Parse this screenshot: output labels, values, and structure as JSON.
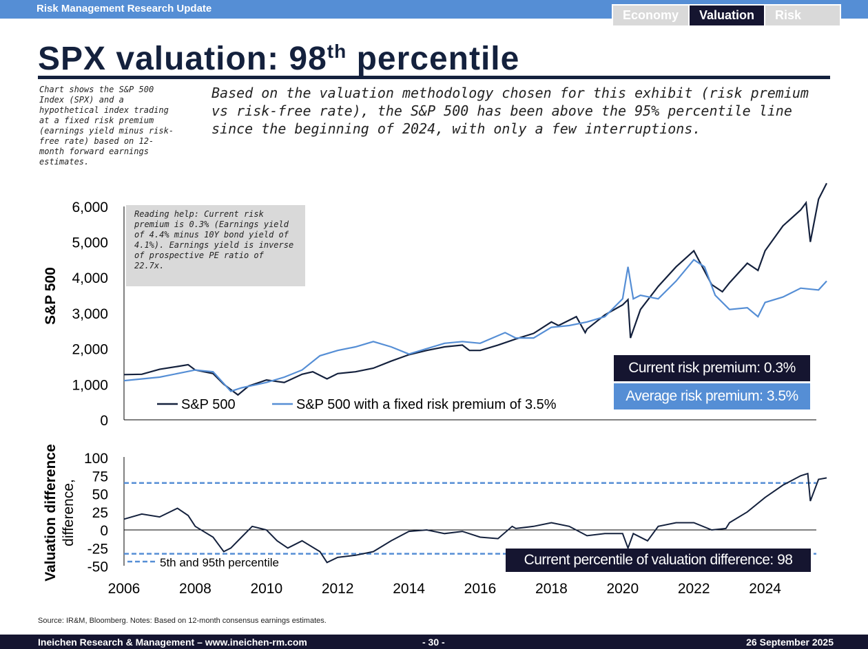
{
  "header": {
    "title": "Risk Management Research Update",
    "tabs": [
      {
        "label": "Economy"
      },
      {
        "label": "Valuation"
      },
      {
        "label": "Risk"
      }
    ]
  },
  "page_title": {
    "main": "SPX valuation: 98",
    "sup": "th",
    "tail": " percentile"
  },
  "side_note": "Chart shows the S&P 500 Index (SPX) and a hypothetical index trading at a fixed risk premium (earnings yield minus risk-free rate) based on 12-month forward earnings estimates.",
  "lead": "Based on the valuation methodology chosen for this exhibit (risk premium vs risk-free rate), the S&P 500 has been above the 95% percentile line since the beginning of 2024, with only a few interruptions.",
  "source": "Source: IR&M, Bloomberg. Notes: Based on 12-month consensus earnings estimates.",
  "footer": {
    "left": "Ineichen Research & Management – www.ineichen-rm.com",
    "page": "- 30 -",
    "date": "26 September 2025"
  },
  "colors": {
    "dark": "#151530",
    "blue": "#558ed5",
    "spx": "#14213d"
  },
  "chart_data": [
    {
      "type": "line",
      "ylabel": "S&P 500",
      "ylim": [
        0,
        6500
      ],
      "yticks": [
        "0",
        "1,000",
        "2,000",
        "3,000",
        "4,000",
        "5,000",
        "6,000"
      ],
      "xlim": [
        2006,
        2025.8
      ],
      "reading_help": "Reading help: Current risk premium is 0.3% (Earnings yield of 4.4% minus 10Y bond yield of 4.1%). Earnings yield is inverse of prospective PE ratio of 22.7x.",
      "boxes": [
        "Current risk premium: 0.3%",
        "Average risk premium: 3.5%"
      ],
      "series": [
        {
          "name": "S&P 500",
          "x": [
            2006,
            2006.5,
            2007,
            2007.5,
            2007.8,
            2008,
            2008.5,
            2008.8,
            2009,
            2009.2,
            2009.5,
            2010,
            2010.5,
            2011,
            2011.3,
            2011.7,
            2012,
            2012.5,
            2013,
            2013.5,
            2014,
            2014.5,
            2015,
            2015.5,
            2015.7,
            2016,
            2016.5,
            2017,
            2017.5,
            2018,
            2018.2,
            2018.7,
            2018.95,
            2019,
            2019.5,
            2020,
            2020.15,
            2020.22,
            2020.5,
            2021,
            2021.5,
            2022,
            2022.5,
            2022.8,
            2023,
            2023.5,
            2023.8,
            2024,
            2024.5,
            2025,
            2025.15,
            2025.27,
            2025.5,
            2025.73
          ],
          "y": [
            1270,
            1280,
            1420,
            1500,
            1550,
            1400,
            1300,
            1000,
            850,
            700,
            950,
            1120,
            1050,
            1280,
            1350,
            1150,
            1300,
            1350,
            1450,
            1650,
            1830,
            1950,
            2050,
            2100,
            1950,
            1950,
            2100,
            2270,
            2430,
            2750,
            2650,
            2900,
            2450,
            2550,
            2950,
            3230,
            3380,
            2300,
            3100,
            3750,
            4300,
            4750,
            3800,
            3600,
            3850,
            4400,
            4200,
            4750,
            5450,
            5900,
            6100,
            5000,
            6200,
            6650
          ]
        },
        {
          "name": "S&P 500 with a fixed risk premium of 3.5%",
          "x": [
            2006,
            2007,
            2008,
            2008.5,
            2009,
            2009.3,
            2010,
            2010.5,
            2011,
            2011.5,
            2012,
            2012.5,
            2013,
            2013.5,
            2014,
            2014.5,
            2015,
            2015.5,
            2016,
            2016.7,
            2017,
            2017.5,
            2018,
            2018.5,
            2019,
            2019.5,
            2020,
            2020.15,
            2020.3,
            2020.5,
            2021,
            2021.5,
            2022,
            2022.3,
            2022.6,
            2023,
            2023.5,
            2023.8,
            2024,
            2024.5,
            2025,
            2025.5,
            2025.73
          ],
          "y": [
            1100,
            1200,
            1400,
            1350,
            800,
            900,
            1050,
            1200,
            1400,
            1800,
            1950,
            2050,
            2200,
            2050,
            1850,
            2000,
            2150,
            2200,
            2150,
            2450,
            2300,
            2300,
            2600,
            2650,
            2750,
            2900,
            3400,
            4300,
            3400,
            3500,
            3400,
            3900,
            4500,
            4300,
            3500,
            3100,
            3150,
            2900,
            3300,
            3450,
            3700,
            3650,
            3900
          ]
        }
      ]
    },
    {
      "type": "line",
      "ylabel": "Valuation difference, %",
      "ylim": [
        -50,
        100
      ],
      "yticks": [
        "-50",
        "-25",
        "0",
        "25",
        "50",
        "75",
        "100"
      ],
      "xticks": [
        "2006",
        "2008",
        "2010",
        "2012",
        "2014",
        "2016",
        "2018",
        "2020",
        "2022",
        "2024"
      ],
      "box": "Current percentile of valuation difference: 98",
      "percentile_label": "5th and 95th percentile",
      "percentiles": [
        -33,
        65
      ],
      "series": [
        {
          "name": "Valuation difference",
          "x": [
            2006,
            2006.5,
            2007,
            2007.5,
            2007.8,
            2008,
            2008.5,
            2008.8,
            2009,
            2009.3,
            2009.6,
            2010,
            2010.3,
            2010.6,
            2011,
            2011.5,
            2011.7,
            2012,
            2012.5,
            2013,
            2013.5,
            2014,
            2014.5,
            2015,
            2015.5,
            2016,
            2016.5,
            2016.9,
            2017,
            2017.5,
            2018,
            2018.5,
            2019,
            2019.5,
            2020,
            2020.15,
            2020.3,
            2020.7,
            2021,
            2021.5,
            2022,
            2022.5,
            2022.9,
            2023,
            2023.5,
            2024,
            2024.5,
            2025,
            2025.2,
            2025.27,
            2025.5,
            2025.73
          ],
          "y": [
            15,
            22,
            18,
            30,
            20,
            5,
            -10,
            -30,
            -25,
            -10,
            5,
            0,
            -15,
            -25,
            -15,
            -30,
            -45,
            -38,
            -35,
            -30,
            -15,
            -2,
            0,
            -5,
            -2,
            -10,
            -12,
            5,
            2,
            5,
            10,
            5,
            -8,
            -5,
            -5,
            -25,
            -5,
            -15,
            5,
            10,
            10,
            0,
            2,
            10,
            25,
            45,
            62,
            75,
            78,
            40,
            70,
            72
          ]
        }
      ]
    }
  ]
}
